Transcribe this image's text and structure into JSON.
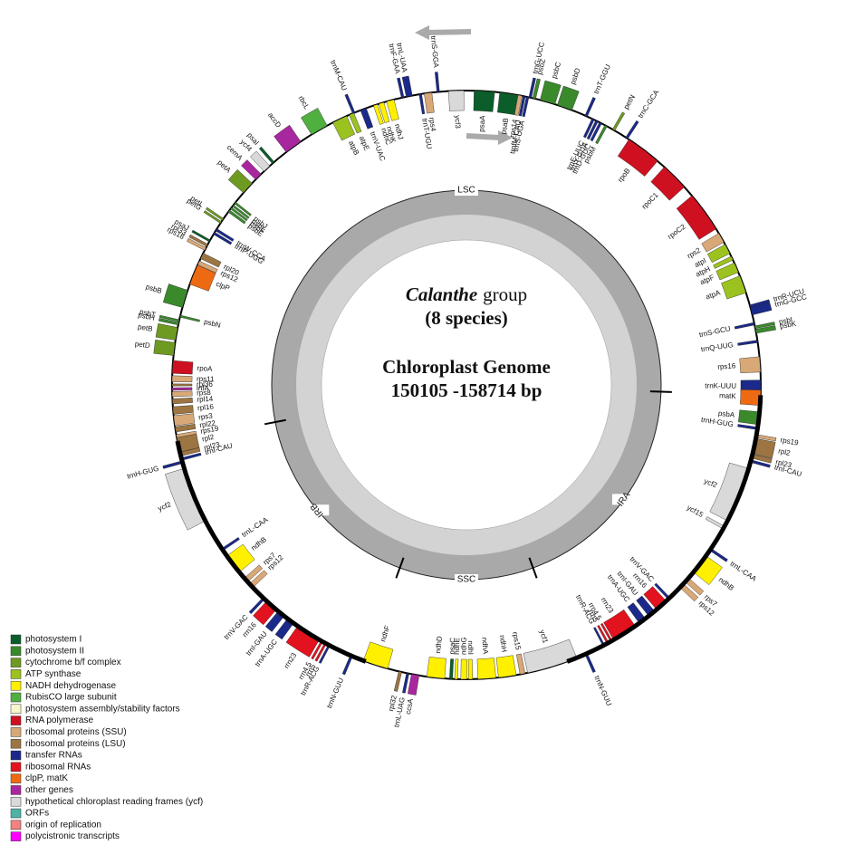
{
  "center": {
    "species_italic": "Calanthe",
    "species_rest": "group",
    "count": "(8 species)",
    "title": "Chloroplast Genome",
    "size": "150105 -158714 bp"
  },
  "regions": [
    {
      "label": "LSC"
    },
    {
      "label": "IRA"
    },
    {
      "label": "SSC"
    },
    {
      "label": "IRB"
    }
  ],
  "legend": {
    "items": [
      {
        "label": "photosystem I",
        "color": "#0b5e2a"
      },
      {
        "label": "photosystem II",
        "color": "#3a8a2c"
      },
      {
        "label": "cytochrome b/f complex",
        "color": "#6f9a22"
      },
      {
        "label": "ATP synthase",
        "color": "#9cc21f"
      },
      {
        "label": "NADH dehydrogenase",
        "color": "#fff000"
      },
      {
        "label": "RubisCO large subunit",
        "color": "#4fb03f"
      },
      {
        "label": "photosystem assembly/stability factors",
        "color": "#f7f5cc"
      },
      {
        "label": "RNA polymerase",
        "color": "#cf1020"
      },
      {
        "label": "ribosomal proteins (SSU)",
        "color": "#d9a877"
      },
      {
        "label": "ribosomal proteins (LSU)",
        "color": "#9c7542"
      },
      {
        "label": "transfer RNAs",
        "color": "#1b2a8a"
      },
      {
        "label": "ribosomal RNAs",
        "color": "#e3121f"
      },
      {
        "label": "clpP, matK",
        "color": "#ee6a12"
      },
      {
        "label": "other genes",
        "color": "#a9279e"
      },
      {
        "label": "hypothetical chloroplast reading frames (ycf)",
        "color": "#d9d9d9"
      },
      {
        "label": "ORFs",
        "color": "#4fb2a6"
      },
      {
        "label": "origin of replication",
        "color": "#f28282"
      },
      {
        "label": "polycistronic transcripts",
        "color": "#ff00ff"
      }
    ]
  },
  "genes": [
    {
      "label": "psaA",
      "group": 0
    },
    {
      "label": "psaB",
      "group": 0
    },
    {
      "label": "rps14",
      "group": 8
    },
    {
      "label": "trnfM-CAU",
      "group": 10
    },
    {
      "label": "trnS-UGA",
      "group": 10
    },
    {
      "label": "trnG-UCC",
      "group": 10
    },
    {
      "label": "psbZ",
      "group": 1
    },
    {
      "label": "psbC",
      "group": 1
    },
    {
      "label": "psbD",
      "group": 1
    },
    {
      "label": "trnT-GGU",
      "group": 10
    },
    {
      "label": "trnE-UUC",
      "group": 10
    },
    {
      "label": "trnY-GUA",
      "group": 10
    },
    {
      "label": "trnD-GUC",
      "group": 10
    },
    {
      "label": "psbM",
      "group": 1
    },
    {
      "label": "petN",
      "group": 2
    },
    {
      "label": "trnC-GCA",
      "group": 10
    },
    {
      "label": "rpoB",
      "group": 7
    },
    {
      "label": "rpoC1",
      "group": 7
    },
    {
      "label": "rpoC2",
      "group": 7
    },
    {
      "label": "rps2",
      "group": 8
    },
    {
      "label": "atpI",
      "group": 3
    },
    {
      "label": "atpH",
      "group": 3
    },
    {
      "label": "atpF",
      "group": 3
    },
    {
      "label": "atpA",
      "group": 3
    },
    {
      "label": "trnR-UCU",
      "group": 10
    },
    {
      "label": "trnG-GCC",
      "group": 10
    },
    {
      "label": "trnS-GCU",
      "group": 10
    },
    {
      "label": "psbI",
      "group": 1
    },
    {
      "label": "psbK",
      "group": 1
    },
    {
      "label": "trnQ-UUG",
      "group": 10
    },
    {
      "label": "rps16",
      "group": 8
    },
    {
      "label": "trnK-UUU",
      "group": 10
    },
    {
      "label": "matK",
      "group": 12
    },
    {
      "label": "psbA",
      "group": 1
    },
    {
      "label": "trnH-GUG",
      "group": 10
    },
    {
      "label": "rps19",
      "group": 8
    },
    {
      "label": "rpl2",
      "group": 9
    },
    {
      "label": "rpl23",
      "group": 9
    },
    {
      "label": "trnI-CAU",
      "group": 10
    },
    {
      "label": "ycf2",
      "group": 14
    },
    {
      "label": "ycf15",
      "group": 14
    },
    {
      "label": "trnL-CAA",
      "group": 10
    },
    {
      "label": "ndhB",
      "group": 4
    },
    {
      "label": "rps7",
      "group": 8
    },
    {
      "label": "rps12",
      "group": 8
    },
    {
      "label": "trnV-GAC",
      "group": 10
    },
    {
      "label": "rrn16",
      "group": 11
    },
    {
      "label": "trnI-GAU",
      "group": 10
    },
    {
      "label": "trnA-UGC",
      "group": 10
    },
    {
      "label": "rrn23",
      "group": 11
    },
    {
      "label": "rrn4.5",
      "group": 11
    },
    {
      "label": "rrn5",
      "group": 11
    },
    {
      "label": "trnR-ACG",
      "group": 10
    },
    {
      "label": "trnN-GUU",
      "group": 10
    },
    {
      "label": "ycf1",
      "group": 14
    },
    {
      "label": "rps15",
      "group": 8
    },
    {
      "label": "ndhH",
      "group": 4
    },
    {
      "label": "ndhA",
      "group": 4
    },
    {
      "label": "ndhI",
      "group": 4
    },
    {
      "label": "ndhG",
      "group": 4
    },
    {
      "label": "ndhE",
      "group": 4
    },
    {
      "label": "psaC",
      "group": 0
    },
    {
      "label": "ndhD",
      "group": 4
    },
    {
      "label": "ccsA",
      "group": 13
    },
    {
      "label": "trnL-UAG",
      "group": 10
    },
    {
      "label": "rpl32",
      "group": 9
    },
    {
      "label": "ndhF",
      "group": 4
    },
    {
      "label": "trnN-GUU",
      "group": 10
    },
    {
      "label": "trnR-ACG",
      "group": 10
    },
    {
      "label": "rrn5",
      "group": 11
    },
    {
      "label": "rrn4.5",
      "group": 11
    },
    {
      "label": "rrn23",
      "group": 11
    },
    {
      "label": "trnA-UGC",
      "group": 10
    },
    {
      "label": "trnI-GAU",
      "group": 10
    },
    {
      "label": "rrn16",
      "group": 11
    },
    {
      "label": "trnV-GAC",
      "group": 10
    },
    {
      "label": "rps12",
      "group": 8
    },
    {
      "label": "rps7",
      "group": 8
    },
    {
      "label": "ndhB",
      "group": 4
    },
    {
      "label": "trnL-CAA",
      "group": 10
    },
    {
      "label": "ycf2",
      "group": 14
    },
    {
      "label": "trnH-GUG",
      "group": 10
    },
    {
      "label": "trnI-CAU",
      "group": 10
    },
    {
      "label": "rpl23",
      "group": 9
    },
    {
      "label": "rpl2",
      "group": 9
    },
    {
      "label": "rps19",
      "group": 8
    },
    {
      "label": "rpl22",
      "group": 9
    },
    {
      "label": "rps3",
      "group": 8
    },
    {
      "label": "rpl16",
      "group": 9
    },
    {
      "label": "rpl14",
      "group": 9
    },
    {
      "label": "rps8",
      "group": 8
    },
    {
      "label": "infA",
      "group": 13
    },
    {
      "label": "rpl36",
      "group": 9
    },
    {
      "label": "rps11",
      "group": 8
    },
    {
      "label": "rpoA",
      "group": 7
    },
    {
      "label": "petD",
      "group": 2
    },
    {
      "label": "petB",
      "group": 2
    },
    {
      "label": "psbH",
      "group": 1
    },
    {
      "label": "psbT",
      "group": 1
    },
    {
      "label": "psbN",
      "group": 1
    },
    {
      "label": "psbB",
      "group": 1
    },
    {
      "label": "clpP",
      "group": 12
    },
    {
      "label": "rps12",
      "group": 8
    },
    {
      "label": "rpl20",
      "group": 9
    },
    {
      "label": "rps18",
      "group": 8
    },
    {
      "label": "rpl33",
      "group": 9
    },
    {
      "label": "psaJ",
      "group": 0
    },
    {
      "label": "trnP-UGG",
      "group": 10
    },
    {
      "label": "trnW-CCA",
      "group": 10
    },
    {
      "label": "petG",
      "group": 2
    },
    {
      "label": "petL",
      "group": 2
    },
    {
      "label": "psbE",
      "group": 1
    },
    {
      "label": "psbF",
      "group": 1
    },
    {
      "label": "psbL",
      "group": 1
    },
    {
      "label": "psbJ",
      "group": 1
    },
    {
      "label": "petA",
      "group": 2
    },
    {
      "label": "cemA",
      "group": 13
    },
    {
      "label": "ycf4",
      "group": 14
    },
    {
      "label": "psaI",
      "group": 0
    },
    {
      "label": "accD",
      "group": 13
    },
    {
      "label": "rbcL",
      "group": 5
    },
    {
      "label": "atpB",
      "group": 3
    },
    {
      "label": "atpE",
      "group": 3
    },
    {
      "label": "trnM-CAU",
      "group": 10
    },
    {
      "label": "trnV-UAC",
      "group": 10
    },
    {
      "label": "ndhC",
      "group": 4
    },
    {
      "label": "ndhK",
      "group": 4
    },
    {
      "label": "ndhJ",
      "group": 4
    },
    {
      "label": "trnF-GAA",
      "group": 10
    },
    {
      "label": "trnL-UAA",
      "group": 10
    },
    {
      "label": "trnT-UGU",
      "group": 10
    },
    {
      "label": "rps4",
      "group": 8
    },
    {
      "label": "trnS-GGA",
      "group": 10
    },
    {
      "label": "ycf3",
      "group": 14
    }
  ]
}
